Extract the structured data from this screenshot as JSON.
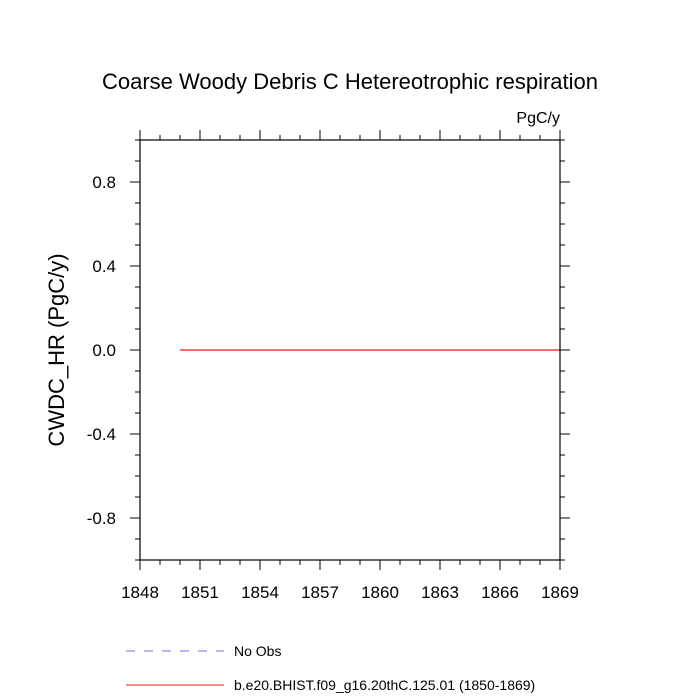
{
  "chart_data": {
    "type": "line",
    "title": "Coarse Woody Debris C Hetereotrophic respiration",
    "units_label": "PgC/y",
    "xlabel": "",
    "ylabel": "CWDC_HR  (PgC/y)",
    "xlim": [
      1848,
      1869
    ],
    "ylim": [
      -1,
      1
    ],
    "x_ticks": [
      1848,
      1851,
      1854,
      1857,
      1860,
      1863,
      1866,
      1869
    ],
    "x_tick_labels": [
      "1848",
      "1851",
      "1854",
      "1857",
      "1860",
      "1863",
      "1866",
      "1869"
    ],
    "y_ticks": [
      -0.8,
      -0.4,
      0.0,
      0.4,
      0.8
    ],
    "y_tick_labels": [
      "-0.8",
      "-0.4",
      "0.0",
      "0.4",
      "0.8"
    ],
    "grid": false,
    "legend_placement": "bottom",
    "series": [
      {
        "name": "b.e20.BHIST.f09_g16.20thC.125.01 (1850-1869)",
        "color": "#e41a1c",
        "dash": "solid",
        "x": [
          1850,
          1851,
          1852,
          1853,
          1854,
          1855,
          1856,
          1857,
          1858,
          1859,
          1860,
          1861,
          1862,
          1863,
          1864,
          1865,
          1866,
          1867,
          1868,
          1869
        ],
        "y": [
          0,
          0,
          0,
          0,
          0,
          0,
          0,
          0,
          0,
          0,
          0,
          0,
          0,
          0,
          0,
          0,
          0,
          0,
          0,
          0
        ]
      }
    ],
    "legend": [
      {
        "label": "No Obs",
        "color": "#6f6fe0",
        "dash": "dashed"
      },
      {
        "label": "b.e20.BHIST.f09_g16.20thC.125.01 (1850-1869)",
        "color": "#e41a1c",
        "dash": "solid"
      }
    ]
  }
}
